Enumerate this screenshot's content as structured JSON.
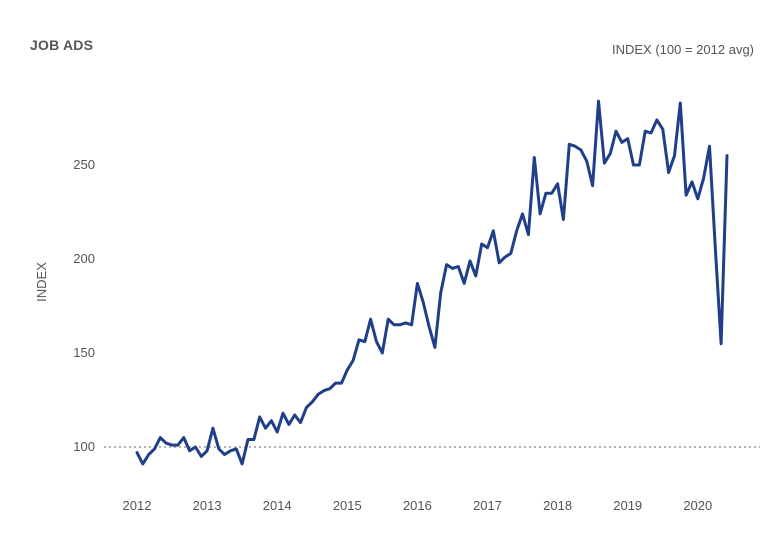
{
  "header": {
    "title": "JOB ADS",
    "units": "INDEX (100 = 2012 avg)"
  },
  "chart_data": {
    "type": "line",
    "title": "JOB ADS",
    "ylabel": "INDEX",
    "xlabel": "",
    "xlim": [
      2011.8,
      2020.5
    ],
    "ylim": [
      85,
      290
    ],
    "x_ticks": [
      "2012",
      "2013",
      "2014",
      "2015",
      "2016",
      "2017",
      "2018",
      "2019",
      "2020"
    ],
    "y_ticks": [
      "100",
      "150",
      "200",
      "250"
    ],
    "reference_line": {
      "y": 100,
      "style": "dotted"
    },
    "line_color": "#1f3f8a",
    "series": [
      {
        "name": "",
        "x": [
          2012.0,
          2012.083,
          2012.167,
          2012.25,
          2012.333,
          2012.417,
          2012.5,
          2012.583,
          2012.667,
          2012.75,
          2012.833,
          2012.917,
          2013.0,
          2013.083,
          2013.167,
          2013.25,
          2013.333,
          2013.417,
          2013.5,
          2013.583,
          2013.667,
          2013.75,
          2013.833,
          2013.917,
          2014.0,
          2014.083,
          2014.167,
          2014.25,
          2014.333,
          2014.417,
          2014.5,
          2014.583,
          2014.667,
          2014.75,
          2014.833,
          2014.917,
          2015.0,
          2015.083,
          2015.167,
          2015.25,
          2015.333,
          2015.417,
          2015.5,
          2015.583,
          2015.667,
          2015.75,
          2015.833,
          2015.917,
          2016.0,
          2016.083,
          2016.167,
          2016.25,
          2016.333,
          2016.417,
          2016.5,
          2016.583,
          2016.667,
          2016.75,
          2016.833,
          2016.917,
          2017.0,
          2017.083,
          2017.167,
          2017.25,
          2017.333,
          2017.417,
          2017.5,
          2017.583,
          2017.667,
          2017.75,
          2017.833,
          2017.917,
          2018.0,
          2018.083,
          2018.167,
          2018.25,
          2018.333,
          2018.417,
          2018.5,
          2018.583,
          2018.667,
          2018.75,
          2018.833,
          2018.917,
          2019.0,
          2019.083,
          2019.167,
          2019.25,
          2019.333,
          2019.417,
          2019.5,
          2019.583,
          2019.667,
          2019.75,
          2019.833,
          2019.917,
          2020.0,
          2020.083,
          2020.167,
          2020.25,
          2020.333,
          2020.417
        ],
        "values": [
          97,
          91,
          96,
          99,
          105,
          102,
          101,
          101,
          105,
          98,
          100,
          95,
          98,
          110,
          99,
          96,
          98,
          99,
          91,
          104,
          104,
          116,
          110,
          114,
          108,
          118,
          112,
          117,
          113,
          121,
          124,
          128,
          130,
          131,
          134,
          134,
          141,
          146,
          157,
          156,
          168,
          156,
          150,
          168,
          165,
          165,
          166,
          165,
          187,
          177,
          164,
          153,
          182,
          197,
          195,
          196,
          187,
          199,
          191,
          208,
          206,
          215,
          198,
          201,
          203,
          215,
          224,
          213,
          254,
          224,
          235,
          235,
          240,
          221,
          261,
          260,
          258,
          252,
          239,
          284,
          251,
          256,
          268,
          262,
          264,
          250,
          250,
          268,
          267,
          274,
          269,
          246,
          255,
          283,
          234,
          241,
          232,
          243,
          260,
          206,
          155,
          255
        ]
      }
    ]
  }
}
